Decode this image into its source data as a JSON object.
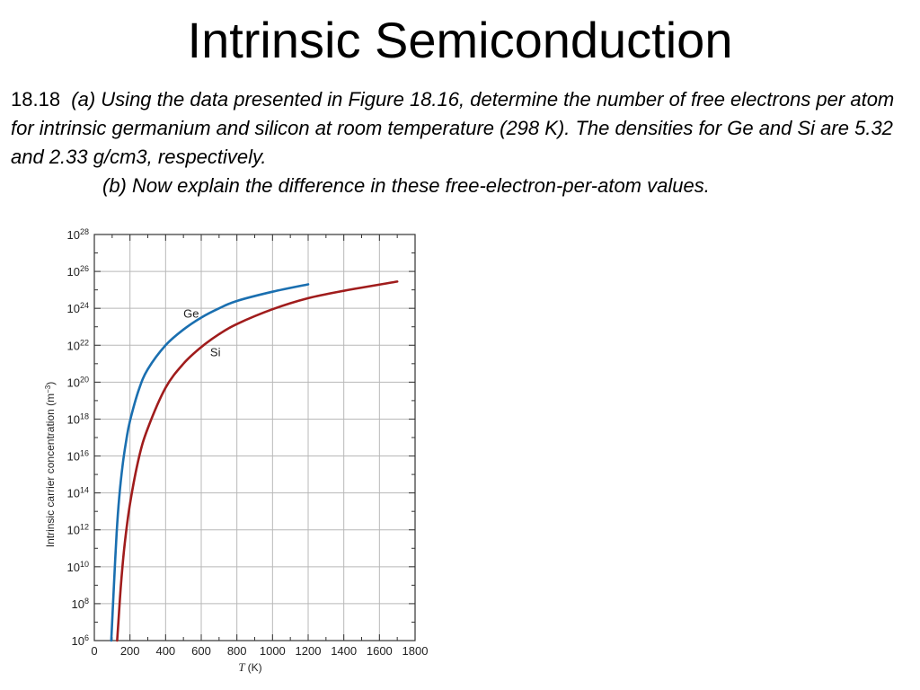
{
  "slide": {
    "title": "Intrinsic Semiconduction",
    "problem_number": "18.18",
    "part_a": "(a) Using the data presented in Figure 18.16, determine the number of free electrons per atom for intrinsic germanium and silicon at room temperature (298 K). The densities for Ge and Si are 5.32 and 2.33 g/cm3, respectively.",
    "part_b": "(b) Now explain the difference in these free-electron-per-atom values."
  },
  "chart_data": {
    "type": "line",
    "title": "",
    "xlabel_symbol": "T",
    "xlabel_unit": "(K)",
    "ylabel": "Intrinsic carrier concentration (m",
    "ylabel_exp": "−3",
    "ylabel_close": ")",
    "xlim": [
      0,
      1800
    ],
    "x_ticks": [
      "0",
      "200",
      "400",
      "600",
      "800",
      "1000",
      "1200",
      "1400",
      "1600",
      "1800"
    ],
    "y_scale": "log",
    "ylim_exponent": [
      6,
      28
    ],
    "y_ticks": [
      {
        "base": "10",
        "exp": "28"
      },
      {
        "base": "10",
        "exp": "26"
      },
      {
        "base": "10",
        "exp": "24"
      },
      {
        "base": "10",
        "exp": "22"
      },
      {
        "base": "10",
        "exp": "20"
      },
      {
        "base": "10",
        "exp": "18"
      },
      {
        "base": "10",
        "exp": "16"
      },
      {
        "base": "10",
        "exp": "14"
      },
      {
        "base": "10",
        "exp": "12"
      },
      {
        "base": "10",
        "exp": "10"
      },
      {
        "base": "10",
        "exp": "8"
      },
      {
        "base": "10",
        "exp": "6"
      }
    ],
    "grid": true,
    "series": [
      {
        "name": "Ge",
        "color": "#1a6fb0",
        "x": [
          95,
          100,
          110,
          125,
          140,
          160,
          180,
          200,
          250,
          300,
          400,
          500,
          600,
          700,
          800,
          1000,
          1200
        ],
        "y_log10": [
          6.0,
          7.0,
          9.0,
          11.8,
          13.8,
          15.6,
          16.9,
          17.9,
          19.6,
          20.7,
          22.0,
          22.85,
          23.5,
          24.0,
          24.4,
          24.9,
          25.3
        ]
      },
      {
        "name": "Si",
        "color": "#a01c1c",
        "x": [
          128,
          135,
          150,
          170,
          200,
          250,
          300,
          400,
          500,
          600,
          700,
          800,
          1000,
          1200,
          1400,
          1700
        ],
        "y_log10": [
          6.0,
          7.0,
          9.1,
          11.2,
          13.4,
          15.9,
          17.5,
          19.7,
          21.0,
          21.9,
          22.6,
          23.15,
          23.95,
          24.55,
          24.95,
          25.45
        ]
      }
    ]
  }
}
